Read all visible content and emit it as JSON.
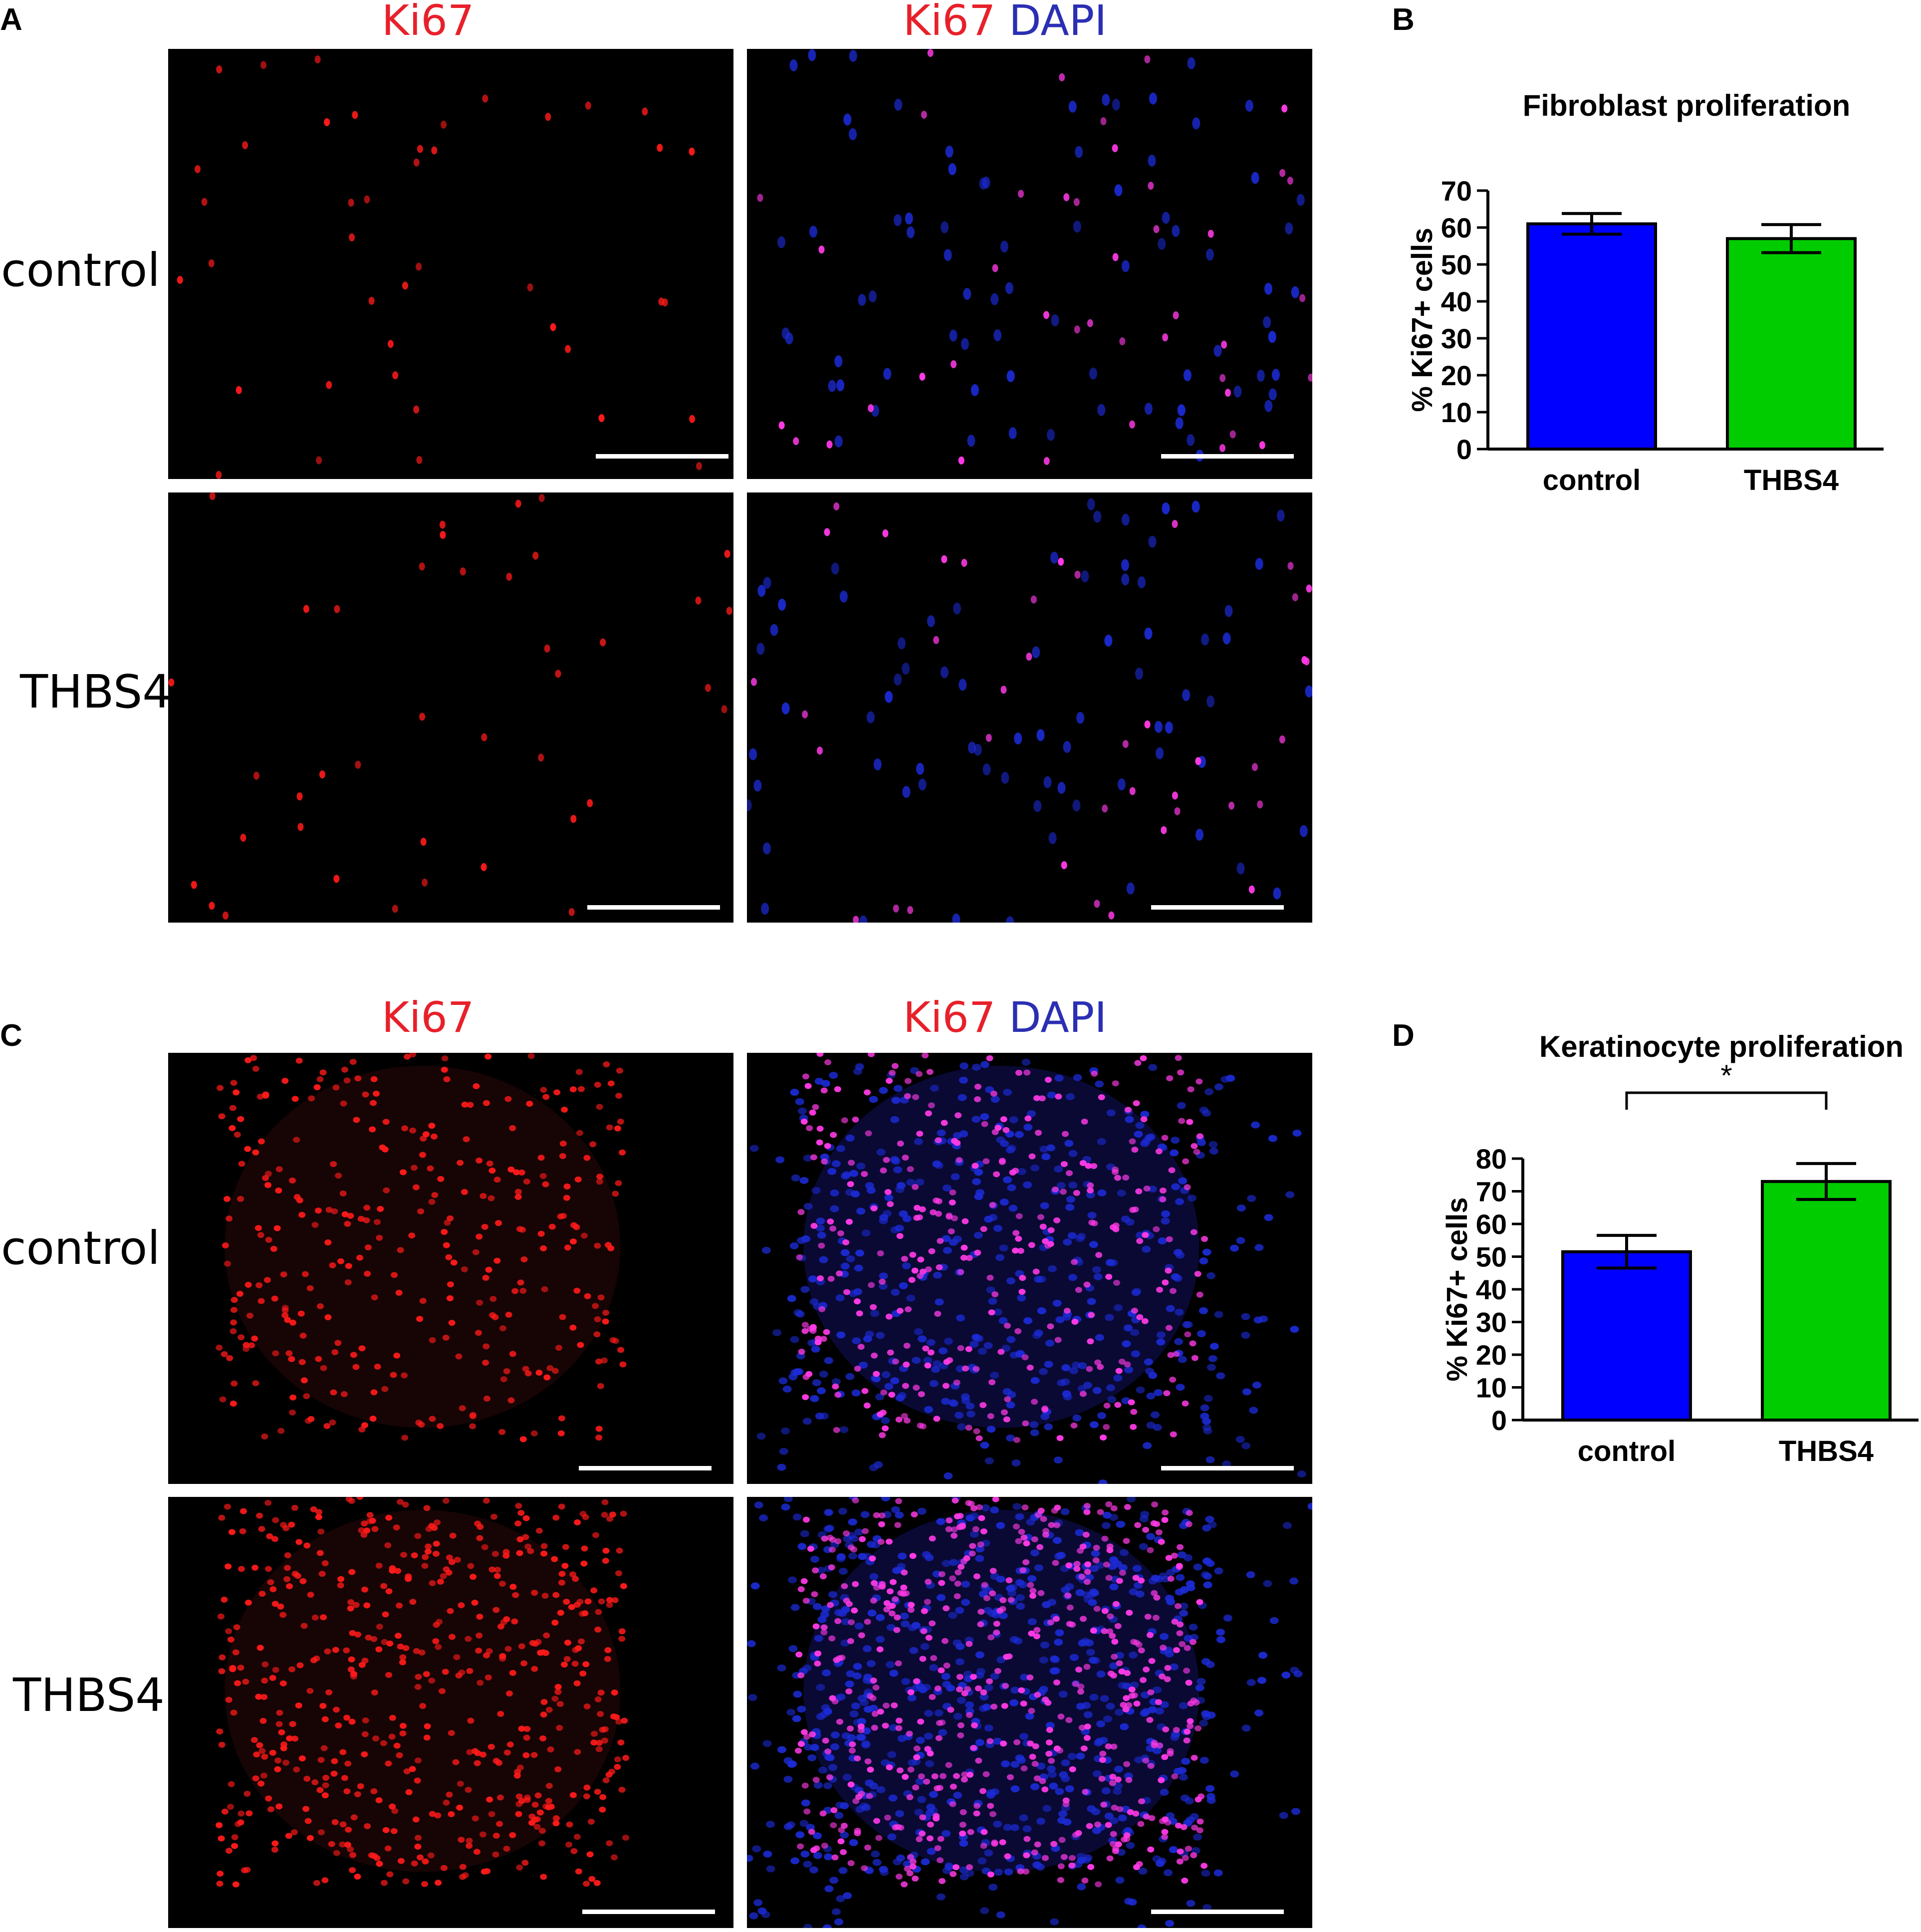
{
  "panel_labels": {
    "a": "A",
    "b": "B",
    "c": "C",
    "d": "D"
  },
  "col_headers": {
    "ki67": "Ki67",
    "dapi": "DAPI"
  },
  "row_labels": {
    "control": "control",
    "thbs4": "THBS4"
  },
  "colors": {
    "ki67": "#e8202a",
    "dapi": "#2b2fb3",
    "control_bar": "#0000ff",
    "thbs4_bar": "#00cc00",
    "merge": "#ff2df0"
  },
  "micrographs": [
    {
      "id": "A-control-ki67",
      "channel": "ki67",
      "density": "sparse",
      "count": 42
    },
    {
      "id": "A-control-merge",
      "channel": "merge",
      "density": "sparse",
      "count": 42
    },
    {
      "id": "A-thbs4-ki67",
      "channel": "ki67",
      "density": "sparse",
      "count": 40
    },
    {
      "id": "A-thbs4-merge",
      "channel": "merge",
      "density": "sparse",
      "count": 40
    },
    {
      "id": "C-control-ki67",
      "channel": "ki67",
      "density": "dense",
      "count": 330
    },
    {
      "id": "C-control-merge",
      "channel": "merge",
      "density": "dense",
      "count": 330
    },
    {
      "id": "C-thbs4-ki67",
      "channel": "ki67",
      "density": "dense",
      "count": 560
    },
    {
      "id": "C-thbs4-merge",
      "channel": "merge",
      "density": "dense",
      "count": 560
    }
  ],
  "chart_data": [
    {
      "type": "bar",
      "title": "Fibroblast proliferation",
      "ylabel": "% Ki67+ cells",
      "categories": [
        "control",
        "THBS4"
      ],
      "values": [
        61,
        57
      ],
      "errors": [
        2.8,
        3.8
      ],
      "ylim": [
        0,
        70
      ],
      "yticks": [
        0,
        10,
        20,
        30,
        40,
        50,
        60,
        70
      ],
      "significance": null
    },
    {
      "type": "bar",
      "title": "Keratinocyte proliferation",
      "ylabel": "% Ki67+ cells",
      "categories": [
        "control",
        "THBS4"
      ],
      "values": [
        51.5,
        73
      ],
      "errors": [
        5,
        5.5
      ],
      "ylim": [
        0,
        80
      ],
      "yticks": [
        0,
        10,
        20,
        30,
        40,
        50,
        60,
        70,
        80
      ],
      "significance": "*"
    }
  ]
}
